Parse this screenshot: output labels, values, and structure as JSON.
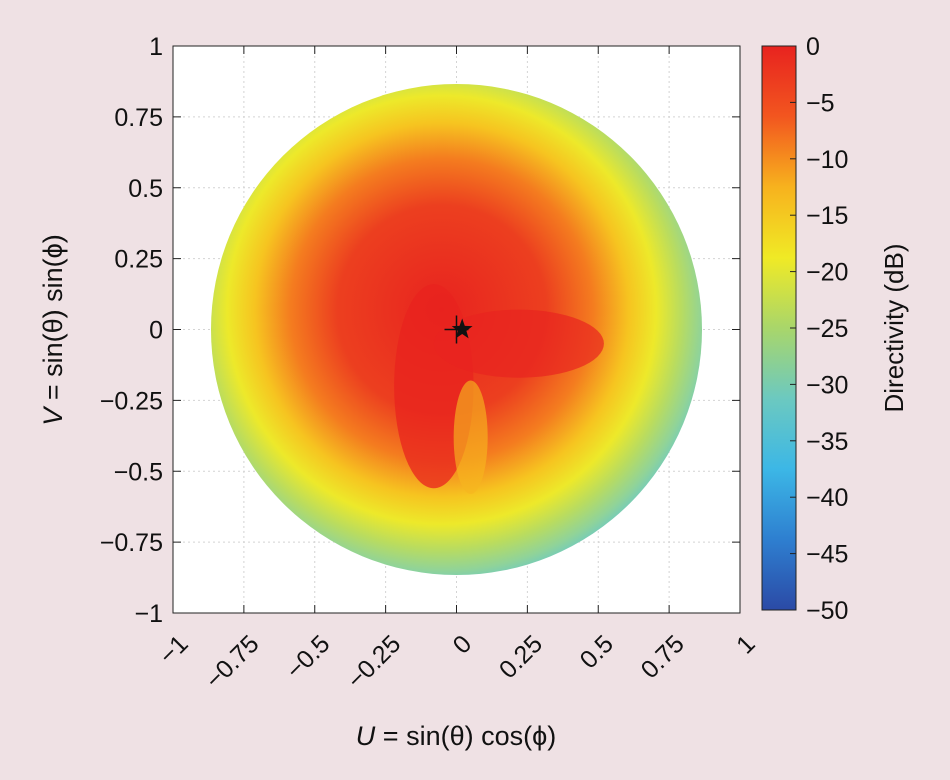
{
  "chart_data": {
    "type": "heatmap",
    "x": {
      "label_var": "U",
      "label_expr": " = sin(θ) cos(ϕ)",
      "range": [
        -1,
        1
      ],
      "ticks": [
        -1,
        -0.75,
        -0.5,
        -0.25,
        0,
        0.25,
        0.5,
        0.75,
        1
      ],
      "tick_labels": [
        "−1",
        "−0.75",
        "−0.5",
        "−0.25",
        "0",
        "0.25",
        "0.5",
        "0.75",
        "1"
      ]
    },
    "y": {
      "label_var": "V",
      "label_expr": " = sin(θ) sin(ϕ)",
      "range": [
        -1,
        1
      ],
      "ticks": [
        1,
        0.75,
        0.5,
        0.25,
        0,
        -0.25,
        -0.5,
        -0.75,
        -1
      ],
      "tick_labels": [
        "1",
        "0.75",
        "0.5",
        "0.25",
        "0",
        "−0.25",
        "−0.5",
        "−0.75",
        "−1"
      ]
    },
    "grid": true,
    "colorbar": {
      "label": "Directivity (dB)",
      "range": [
        -50,
        0
      ],
      "ticks": [
        0,
        -5,
        -10,
        -15,
        -20,
        -25,
        -30,
        -35,
        -40,
        -45,
        -50
      ],
      "tick_labels": [
        "0",
        "−5",
        "−10",
        "−15",
        "−20",
        "−25",
        "−30",
        "−35",
        "−40",
        "−45",
        "−50"
      ],
      "colormap": [
        "#2b4aa6",
        "#2e7fd0",
        "#3cb7e6",
        "#6cc9c0",
        "#a9d66a",
        "#f0ea25",
        "#f7b21e",
        "#f2561f",
        "#e8231f"
      ]
    },
    "visible_region_radius": 0.866,
    "visible_region_edge_db": -31,
    "main_beam": {
      "u": 0.02,
      "v": 0.0,
      "db": 0
    },
    "markers": [
      {
        "symbol": "crosshair",
        "u": 0.0,
        "v": 0.0
      },
      {
        "symbol": "star",
        "u": 0.02,
        "v": 0.0
      }
    ]
  }
}
